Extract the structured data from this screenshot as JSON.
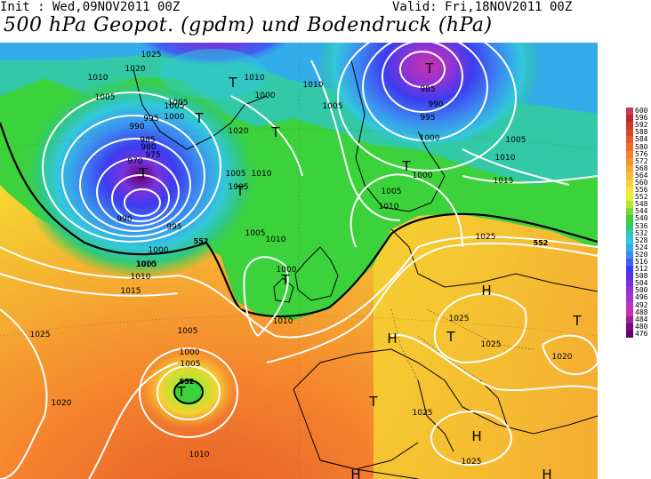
{
  "header": {
    "init": "Init : Wed,09NOV2011 00Z",
    "valid": "Valid: Fri,18NOV2011 00Z",
    "title": "500 hPa Geopot. (gpdm) und Bodendruck (hPa)"
  },
  "legend": {
    "levels": [
      {
        "label": "600",
        "color": "#c83c55"
      },
      {
        "label": "596",
        "color": "#be2832"
      },
      {
        "label": "592",
        "color": "#c83c2d"
      },
      {
        "label": "588",
        "color": "#dc4628"
      },
      {
        "label": "584",
        "color": "#e65a28"
      },
      {
        "label": "580",
        "color": "#f06e28"
      },
      {
        "label": "576",
        "color": "#f5822d"
      },
      {
        "label": "572",
        "color": "#f5962d"
      },
      {
        "label": "568",
        "color": "#f5aa32"
      },
      {
        "label": "564",
        "color": "#f5be32"
      },
      {
        "label": "560",
        "color": "#f5d232"
      },
      {
        "label": "556",
        "color": "#f5e632"
      },
      {
        "label": "552",
        "color": "#e6f032"
      },
      {
        "label": "548",
        "color": "#b4e632"
      },
      {
        "label": "544",
        "color": "#78dc32"
      },
      {
        "label": "540",
        "color": "#3cd23c"
      },
      {
        "label": "536",
        "color": "#32c878"
      },
      {
        "label": "532",
        "color": "#32c8b4"
      },
      {
        "label": "528",
        "color": "#32c8dc"
      },
      {
        "label": "524",
        "color": "#32aaf0"
      },
      {
        "label": "520",
        "color": "#3c8cf0"
      },
      {
        "label": "516",
        "color": "#3c64f0"
      },
      {
        "label": "512",
        "color": "#3c3cf0"
      },
      {
        "label": "508",
        "color": "#5a32e6"
      },
      {
        "label": "504",
        "color": "#7832dc"
      },
      {
        "label": "500",
        "color": "#9632d2"
      },
      {
        "label": "496",
        "color": "#aa32c8"
      },
      {
        "label": "492",
        "color": "#be32be"
      },
      {
        "label": "488",
        "color": "#c832aa"
      },
      {
        "label": "484",
        "color": "#a01e96"
      },
      {
        "label": "480",
        "color": "#780a82"
      },
      {
        "label": "476",
        "color": "#64006e"
      }
    ]
  },
  "map": {
    "pressure_labels": [
      "1025",
      "1020",
      "1010",
      "1005",
      "1005",
      "995",
      "990",
      "985",
      "980",
      "975",
      "970",
      "1005",
      "1000",
      "990",
      "995",
      "1000",
      "1010",
      "1000",
      "1005",
      "1010",
      "985",
      "990",
      "995",
      "1000",
      "1005",
      "1010",
      "1015",
      "1020",
      "1010",
      "1005",
      "1005",
      "1010",
      "1005",
      "1000",
      "1000",
      "1005",
      "1010",
      "1015",
      "1025",
      "1010",
      "1005",
      "1000",
      "1025",
      "1020",
      "1025",
      "1025",
      "1020",
      "1010",
      "1005",
      "1010",
      "1025",
      "1025",
      "1010",
      "1005"
    ],
    "geopotential_labels": [
      "552",
      "552",
      "552"
    ],
    "center_labels": [
      "T",
      "T",
      "T",
      "T",
      "T",
      "T",
      "T",
      "T",
      "T",
      "T",
      "T",
      "H",
      "H",
      "H",
      "T",
      "H",
      "H"
    ]
  }
}
